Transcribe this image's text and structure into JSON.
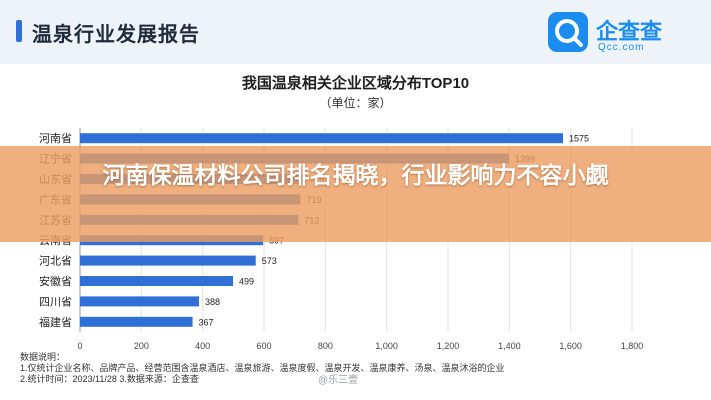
{
  "header": {
    "title": "温泉行业发展报告"
  },
  "logo": {
    "name": "企查查",
    "domain": "Qcc.com",
    "icon": "qcc-logo-icon"
  },
  "chart_data": {
    "type": "bar",
    "orientation": "horizontal",
    "title": "我国温泉相关企业区域分布TOP10",
    "subtitle": "（单位：家）",
    "categories": [
      "河南省",
      "辽宁省",
      "山东省",
      "广东省",
      "江苏省",
      "云南省",
      "河北省",
      "安徽省",
      "四川省",
      "福建省"
    ],
    "values": [
      1575,
      1399,
      729,
      719,
      712,
      597,
      573,
      499,
      388,
      367
    ],
    "xlim": [
      0,
      1800
    ],
    "xticks": [
      "0",
      "200",
      "400",
      "600",
      "800",
      "1,000",
      "1,200",
      "1,400",
      "1,600",
      "1,800"
    ],
    "bar_color": "#2f6fd6",
    "grid": true,
    "legend": "none"
  },
  "notes": [
    "数据说明：",
    "1.仅统计企业名称、品牌产品、经营范围含温泉酒店、温泉旅游、温泉度假、温泉开发、温泉康养、汤泉、温泉沐浴的企业",
    "2.统计时间：2023/11/28    3.数据来源：企查查"
  ],
  "overlay": {
    "headline": "河南保温材料公司排名揭晓，行业影响力不容小觑",
    "color": "#ec9e62"
  },
  "watermark": "@乐三壹"
}
